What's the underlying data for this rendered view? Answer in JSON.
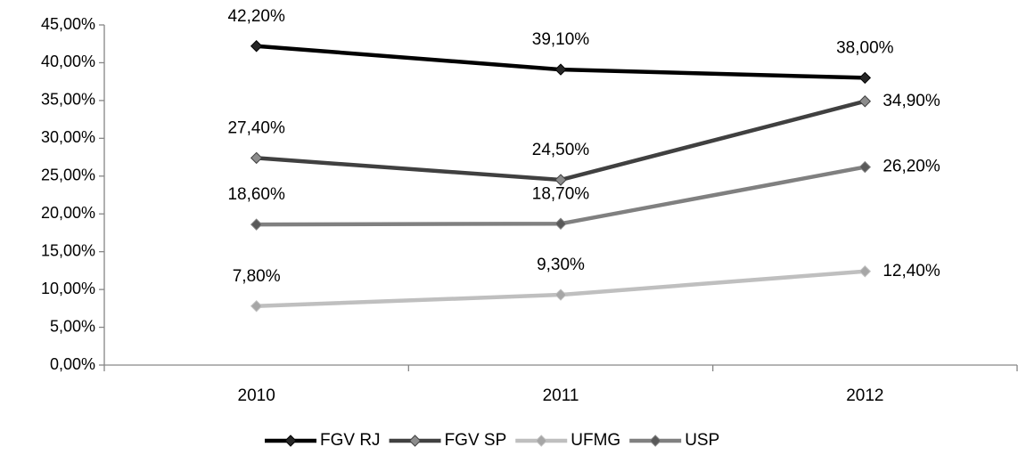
{
  "chart_data": {
    "type": "line",
    "categories": [
      "2010",
      "2011",
      "2012"
    ],
    "series": [
      {
        "name": "FGV RJ",
        "color": "#000000",
        "marker_fill": "#262626",
        "values": [
          42.2,
          39.1,
          38.0
        ],
        "value_labels": [
          "42,20%",
          "39,10%",
          "38,00%"
        ]
      },
      {
        "name": "FGV SP",
        "color": "#404040",
        "marker_fill": "#8c8c8c",
        "values": [
          27.4,
          24.5,
          34.9
        ],
        "value_labels": [
          "27,40%",
          "24,50%",
          "34,90%"
        ]
      },
      {
        "name": "UFMG",
        "color": "#bfbfbf",
        "marker_fill": "#a6a6a6",
        "values": [
          7.8,
          9.3,
          12.4
        ],
        "value_labels": [
          "7,80%",
          "9,30%",
          "12,40%"
        ]
      },
      {
        "name": "USP",
        "color": "#808080",
        "marker_fill": "#595959",
        "values": [
          18.6,
          18.7,
          26.2
        ],
        "value_labels": [
          "18,60%",
          "18,70%",
          "26,20%"
        ]
      }
    ],
    "ylim": [
      0,
      45
    ],
    "yticks": [
      {
        "value": 0,
        "label": "0,00%"
      },
      {
        "value": 5,
        "label": "5,00%"
      },
      {
        "value": 10,
        "label": "10,00%"
      },
      {
        "value": 15,
        "label": "15,00%"
      },
      {
        "value": 20,
        "label": "20,00%"
      },
      {
        "value": 25,
        "label": "25,00%"
      },
      {
        "value": 30,
        "label": "30,00%"
      },
      {
        "value": 35,
        "label": "35,00%"
      },
      {
        "value": 40,
        "label": "40,00%"
      },
      {
        "value": 45,
        "label": "45,00%"
      }
    ],
    "legend": "bottom"
  }
}
